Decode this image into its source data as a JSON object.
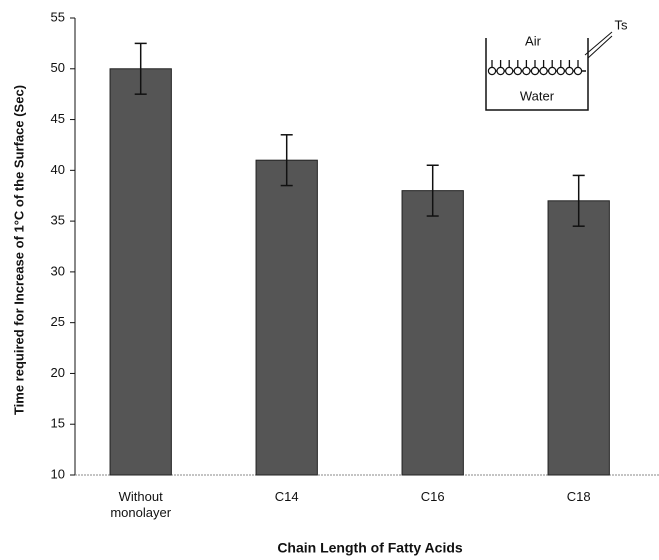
{
  "chart_data": {
    "type": "bar",
    "y_label": "Time required for Increase of 1°C of the Surface (Sec)",
    "x_label": "Chain Length of Fatty Acids",
    "categories": [
      "Without monolayer",
      "C14",
      "C16",
      "C18"
    ],
    "values": [
      50,
      41,
      38,
      37
    ],
    "errors": [
      2.5,
      2.5,
      2.5,
      2.5
    ],
    "color": "#555555",
    "ylim": [
      10,
      55
    ],
    "yticks": [
      10,
      15,
      20,
      25,
      30,
      35,
      40,
      45,
      50,
      55
    ],
    "annotations": [
      "Air",
      "Water",
      "Ts"
    ]
  }
}
